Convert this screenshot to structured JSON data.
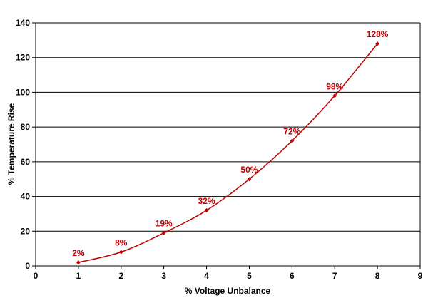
{
  "chart_data": {
    "type": "line",
    "title": "",
    "xlabel": "% Voltage Unbalance",
    "ylabel": "% Temperature Rise",
    "xlim": [
      0,
      9
    ],
    "ylim": [
      0,
      140
    ],
    "x_ticks": [
      0,
      1,
      2,
      3,
      4,
      5,
      6,
      7,
      8,
      9
    ],
    "y_ticks": [
      0,
      20,
      40,
      60,
      80,
      100,
      120,
      140
    ],
    "grid": "horizontal",
    "legend": "none",
    "line_color": "#C00000",
    "smooth": true,
    "series": [
      {
        "x": [
          1,
          2,
          3,
          4,
          5,
          6,
          7,
          8
        ],
        "values": [
          2,
          8,
          19,
          32,
          50,
          72,
          98,
          128
        ],
        "labels": [
          "2%",
          "8%",
          "19%",
          "32%",
          "50%",
          "72%",
          "98%",
          "128%"
        ]
      }
    ]
  }
}
